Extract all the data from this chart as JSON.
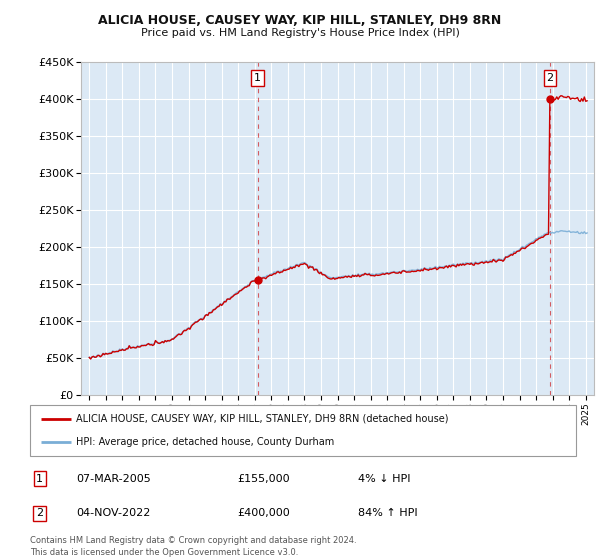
{
  "title1": "ALICIA HOUSE, CAUSEY WAY, KIP HILL, STANLEY, DH9 8RN",
  "title2": "Price paid vs. HM Land Registry's House Price Index (HPI)",
  "bg_color": "#dce9f5",
  "grid_color": "#ffffff",
  "red_color": "#cc0000",
  "blue_color": "#7aaed6",
  "sale1_year": 2005.18,
  "sale1_price": 155000,
  "sale2_year": 2022.84,
  "sale2_price": 400000,
  "legend_line1": "ALICIA HOUSE, CAUSEY WAY, KIP HILL, STANLEY, DH9 8RN (detached house)",
  "legend_line2": "HPI: Average price, detached house, County Durham",
  "annotation1_label": "1",
  "annotation1_date": "07-MAR-2005",
  "annotation1_price": "£155,000",
  "annotation1_hpi": "4% ↓ HPI",
  "annotation2_label": "2",
  "annotation2_date": "04-NOV-2022",
  "annotation2_price": "£400,000",
  "annotation2_hpi": "84% ↑ HPI",
  "footer": "Contains HM Land Registry data © Crown copyright and database right 2024.\nThis data is licensed under the Open Government Licence v3.0.",
  "ylim_min": 0,
  "ylim_max": 450000,
  "xlim_min": 1994.5,
  "xlim_max": 2025.5
}
